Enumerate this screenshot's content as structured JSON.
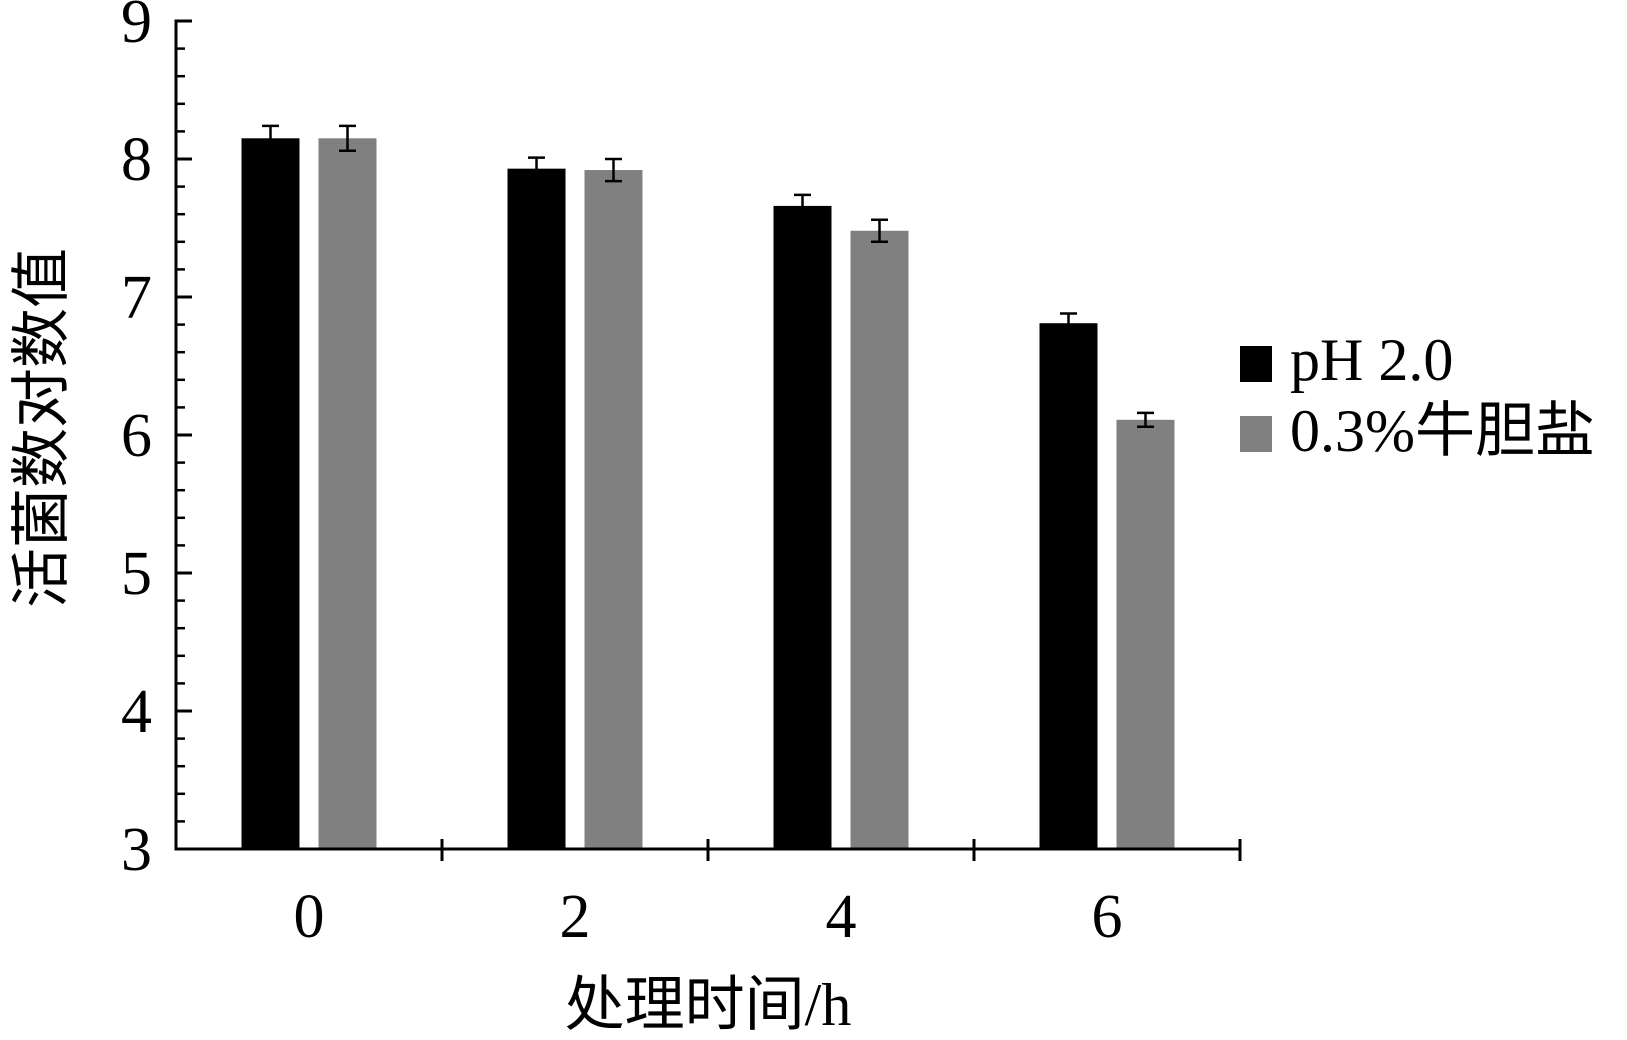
{
  "chart_data": {
    "type": "bar",
    "categories": [
      "0",
      "2",
      "4",
      "6"
    ],
    "series": [
      {
        "name": "pH 2.0",
        "color": "#000000",
        "values": [
          8.15,
          7.93,
          7.66,
          6.81
        ],
        "errors": [
          0.09,
          0.08,
          0.08,
          0.07
        ]
      },
      {
        "name": "0.3%牛胆盐",
        "color": "#808080",
        "values": [
          8.15,
          7.92,
          7.48,
          6.11
        ],
        "errors": [
          0.09,
          0.08,
          0.08,
          0.05
        ]
      }
    ],
    "xlabel": "处理时间/h",
    "ylabel": "活菌数对数值",
    "ylim": [
      3,
      9
    ],
    "yticks": [
      3,
      4,
      5,
      6,
      7,
      8,
      9
    ],
    "grid": false,
    "legend_position": "right",
    "error_bar_color": "#000000"
  }
}
